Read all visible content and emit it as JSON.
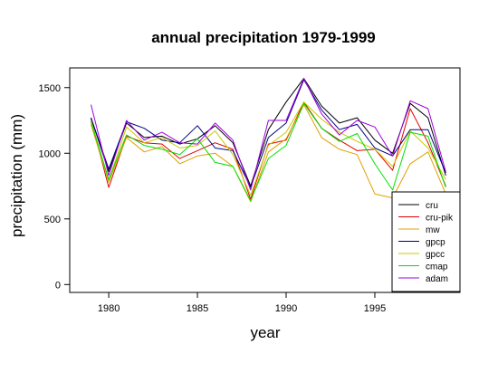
{
  "chart_data": {
    "type": "line",
    "title": "annual precipitation 1979-1999",
    "xlabel": "year",
    "ylabel": "precipitation (mm)",
    "x": [
      1979,
      1980,
      1981,
      1982,
      1983,
      1984,
      1985,
      1986,
      1987,
      1988,
      1989,
      1990,
      1991,
      1992,
      1993,
      1994,
      1995,
      1996,
      1997,
      1998,
      1999
    ],
    "xlim": [
      1977.8,
      1999.8
    ],
    "ylim": [
      -60,
      1650
    ],
    "xticks": [
      1980,
      1985,
      1990,
      1995
    ],
    "yticks": [
      0,
      500,
      1000,
      1500
    ],
    "legend_position": "bottom-right",
    "grid": false,
    "series": [
      {
        "name": "cru",
        "color": "#000000",
        "values": [
          1270,
          860,
          1230,
          1120,
          1130,
          1070,
          1110,
          1210,
          1080,
          750,
          1180,
          1390,
          1570,
          1360,
          1230,
          1270,
          1100,
          1000,
          1380,
          1270,
          830
        ]
      },
      {
        "name": "cru-pik",
        "color": "#e00000",
        "values": [
          1260,
          740,
          1130,
          1080,
          1070,
          960,
          1020,
          1080,
          1030,
          650,
          1070,
          1100,
          1390,
          1190,
          1100,
          1020,
          1030,
          870,
          1340,
          1080,
          750
        ]
      },
      {
        "name": "mw",
        "color": "#e0a000",
        "values": [
          1220,
          780,
          1120,
          1010,
          1050,
          920,
          980,
          1000,
          900,
          630,
          1010,
          1110,
          1370,
          1120,
          1030,
          990,
          690,
          660,
          920,
          1010,
          690
        ]
      },
      {
        "name": "gpcp",
        "color": "#000080",
        "values": [
          1270,
          880,
          1240,
          1190,
          1100,
          1080,
          1210,
          1040,
          1020,
          740,
          1120,
          1230,
          1560,
          1330,
          1180,
          1220,
          1040,
          980,
          1180,
          1180,
          850
        ]
      },
      {
        "name": "gpcc",
        "color": "#c8c800",
        "values": [
          1250,
          790,
          1200,
          1080,
          1120,
          1040,
          1060,
          1170,
          990,
          680,
          1060,
          1160,
          1390,
          1260,
          1160,
          1090,
          1030,
          900,
          1170,
          1040,
          800
        ]
      },
      {
        "name": "cmap",
        "color": "#00e000",
        "values": [
          1240,
          800,
          1140,
          1060,
          1030,
          990,
          1110,
          930,
          900,
          640,
          960,
          1060,
          1380,
          1190,
          1090,
          1150,
          920,
          720,
          1160,
          1130,
          740
        ]
      },
      {
        "name": "adam",
        "color": "#a000e0",
        "values": [
          1370,
          830,
          1250,
          1100,
          1160,
          1080,
          1070,
          1230,
          1100,
          720,
          1250,
          1250,
          1570,
          1300,
          1140,
          1250,
          1200,
          980,
          1400,
          1340,
          860
        ]
      }
    ]
  }
}
